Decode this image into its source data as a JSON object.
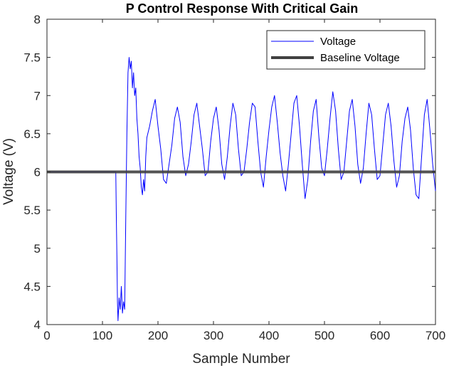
{
  "chart_data": {
    "type": "line",
    "title": "P Control Response With Critical Gain",
    "xlabel": "Sample Number",
    "ylabel": "Voltage (V)",
    "xlim": [
      0,
      700
    ],
    "ylim": [
      4,
      8
    ],
    "xticks": [
      0,
      100,
      200,
      300,
      400,
      500,
      600,
      700
    ],
    "yticks": [
      4,
      4.5,
      5,
      5.5,
      6,
      6.5,
      7,
      7.5,
      8
    ],
    "xtick_labels": [
      "0",
      "100",
      "200",
      "300",
      "400",
      "500",
      "600",
      "700"
    ],
    "ytick_labels": [
      "4",
      "4.5",
      "5",
      "5.5",
      "6",
      "6.5",
      "7",
      "7.5",
      "8"
    ],
    "grid": false,
    "legend_position": "top-right",
    "series": [
      {
        "name": "Voltage",
        "color": "#0000ff",
        "x": [
          0,
          124,
          125,
          126,
          127,
          128,
          129,
          130,
          132,
          134,
          136,
          138,
          140,
          142,
          144,
          146,
          148,
          150,
          152,
          154,
          156,
          158,
          160,
          162,
          164,
          166,
          168,
          170,
          172,
          174,
          176,
          178,
          180,
          185,
          190,
          195,
          200,
          205,
          210,
          215,
          220,
          225,
          230,
          235,
          240,
          245,
          250,
          255,
          260,
          265,
          270,
          275,
          280,
          285,
          290,
          295,
          300,
          305,
          310,
          315,
          320,
          325,
          330,
          335,
          340,
          345,
          350,
          355,
          360,
          365,
          370,
          375,
          380,
          385,
          390,
          395,
          400,
          405,
          410,
          415,
          420,
          425,
          430,
          435,
          440,
          445,
          450,
          455,
          460,
          465,
          470,
          475,
          480,
          485,
          490,
          495,
          500,
          505,
          510,
          515,
          520,
          525,
          530,
          535,
          540,
          545,
          550,
          555,
          560,
          565,
          570,
          575,
          580,
          585,
          590,
          595,
          600,
          605,
          610,
          615,
          620,
          625,
          630,
          635,
          640,
          645,
          650,
          655,
          660,
          665,
          670,
          675,
          680,
          685,
          690,
          695,
          700
        ],
        "y": [
          6.0,
          6.0,
          5.4,
          4.9,
          4.3,
          4.05,
          4.2,
          4.35,
          4.2,
          4.5,
          4.15,
          4.3,
          4.2,
          5.4,
          6.5,
          7.3,
          7.5,
          7.35,
          7.45,
          7.1,
          7.3,
          7.0,
          7.1,
          6.7,
          6.5,
          6.2,
          6.05,
          5.8,
          5.7,
          5.9,
          5.75,
          6.2,
          6.45,
          6.6,
          6.8,
          6.95,
          6.6,
          6.3,
          5.9,
          5.85,
          6.1,
          6.35,
          6.7,
          6.85,
          6.65,
          6.2,
          5.95,
          6.1,
          6.4,
          6.75,
          6.9,
          6.6,
          6.3,
          5.95,
          6.0,
          6.4,
          6.7,
          6.85,
          6.55,
          6.1,
          5.9,
          6.2,
          6.6,
          6.9,
          6.75,
          6.3,
          5.95,
          6.0,
          6.3,
          6.65,
          6.9,
          6.85,
          6.4,
          6.0,
          5.8,
          6.2,
          6.55,
          6.85,
          7.0,
          6.65,
          6.25,
          5.95,
          5.75,
          6.1,
          6.5,
          6.9,
          7.0,
          6.6,
          6.1,
          5.65,
          5.9,
          6.4,
          6.8,
          6.95,
          6.45,
          6.05,
          5.95,
          6.3,
          6.7,
          7.05,
          6.8,
          6.3,
          5.9,
          6.0,
          6.4,
          6.8,
          6.95,
          6.6,
          6.1,
          5.85,
          6.05,
          6.5,
          6.9,
          6.75,
          6.3,
          5.9,
          5.95,
          6.35,
          6.75,
          6.9,
          6.6,
          6.15,
          5.8,
          5.95,
          6.4,
          6.7,
          6.85,
          6.55,
          6.05,
          5.7,
          5.65,
          6.2,
          6.75,
          6.95,
          6.55,
          6.1,
          5.75
        ]
      },
      {
        "name": "Baseline Voltage",
        "color": "#404040",
        "x": [
          0,
          700
        ],
        "y": [
          6.0,
          6.0
        ]
      }
    ]
  }
}
